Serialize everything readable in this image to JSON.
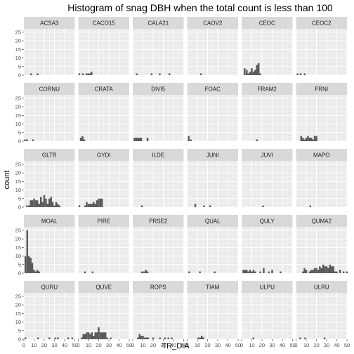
{
  "chart_data": {
    "type": "bar",
    "title": "Histogram of snag DBH when the total count is less than 100",
    "xlabel": "TR_DIA",
    "ylabel": "count",
    "xlim": [
      0,
      50
    ],
    "ylim": [
      0,
      27
    ],
    "x_ticks": [
      0,
      10,
      20,
      30,
      40,
      50
    ],
    "y_ticks": [
      0,
      5,
      10,
      15,
      20,
      25
    ],
    "bin_width": 1.67,
    "grid": true,
    "facets": [
      {
        "name": "ACSA3",
        "bars": [
          [
            7,
            1
          ],
          [
            13.5,
            1
          ]
        ]
      },
      {
        "name": "CACO15",
        "bars": [
          [
            1,
            1
          ],
          [
            4.5,
            1
          ],
          [
            8,
            1
          ],
          [
            9.7,
            1
          ],
          [
            11.3,
            1
          ],
          [
            13,
            2
          ]
        ]
      },
      {
        "name": "CALA21",
        "bars": [
          [
            4,
            1
          ],
          [
            18.5,
            1
          ],
          [
            26.5,
            1
          ],
          [
            36,
            1
          ]
        ]
      },
      {
        "name": "CAOV2",
        "bars": [
          [
            13.5,
            1
          ]
        ]
      },
      {
        "name": "CEOC",
        "bars": [
          [
            3,
            4
          ],
          [
            5,
            3
          ],
          [
            6.7,
            1
          ],
          [
            8.3,
            2
          ],
          [
            10,
            4
          ],
          [
            11.7,
            2
          ],
          [
            13.3,
            3
          ],
          [
            15,
            6
          ],
          [
            16.7,
            7
          ],
          [
            18.3,
            1
          ]
        ]
      },
      {
        "name": "CEOC2",
        "bars": [
          [
            1.5,
            1
          ],
          [
            4.5,
            1
          ],
          [
            8.5,
            1
          ]
        ]
      },
      {
        "name": "CORNU",
        "bars": [
          [
            1,
            1
          ],
          [
            3,
            1
          ],
          [
            9,
            1
          ]
        ]
      },
      {
        "name": "CRATA",
        "bars": [
          [
            2.5,
            2
          ],
          [
            4.2,
            3
          ],
          [
            5.8,
            1
          ]
        ]
      },
      {
        "name": "DIVI5",
        "bars": [
          [
            1.7,
            2
          ],
          [
            3.3,
            2
          ],
          [
            5,
            2
          ],
          [
            6.7,
            2
          ],
          [
            8.3,
            2
          ],
          [
            14.5,
            2
          ]
        ]
      },
      {
        "name": "FOAC",
        "bars": [
          [
            1.5,
            3
          ],
          [
            3.5,
            1
          ]
        ]
      },
      {
        "name": "FRAM2",
        "bars": [
          [
            15,
            1
          ]
        ]
      },
      {
        "name": "FRNI",
        "bars": [
          [
            5,
            3
          ],
          [
            6.7,
            2
          ],
          [
            8.3,
            1
          ],
          [
            10,
            2
          ],
          [
            11.7,
            3
          ],
          [
            13.3,
            2
          ],
          [
            15,
            2
          ],
          [
            16.7,
            1
          ],
          [
            18.3,
            3
          ],
          [
            20,
            3
          ]
        ]
      },
      {
        "name": "GLTR",
        "bars": [
          [
            3,
            1
          ],
          [
            5,
            1
          ],
          [
            6.7,
            4
          ],
          [
            8.3,
            4
          ],
          [
            10,
            5
          ],
          [
            11.7,
            4
          ],
          [
            13.3,
            4
          ],
          [
            15,
            2
          ],
          [
            16.7,
            6
          ],
          [
            18.3,
            3
          ],
          [
            20,
            7
          ],
          [
            21.7,
            5
          ],
          [
            23.3,
            2
          ],
          [
            25,
            5
          ],
          [
            26.7,
            6
          ],
          [
            28.3,
            3
          ],
          [
            30,
            1
          ],
          [
            31.7,
            3
          ],
          [
            33.3,
            2
          ],
          [
            35,
            1
          ]
        ]
      },
      {
        "name": "GYDI",
        "bars": [
          [
            1,
            1
          ],
          [
            6.7,
            1
          ],
          [
            8.3,
            3
          ],
          [
            10,
            2
          ],
          [
            11.7,
            2
          ],
          [
            13.3,
            2
          ],
          [
            15,
            3
          ],
          [
            16.7,
            2
          ],
          [
            18.3,
            4
          ],
          [
            20,
            5
          ],
          [
            21.7,
            5
          ],
          [
            23.3,
            5
          ]
        ]
      },
      {
        "name": "ILDE",
        "bars": [
          [
            9,
            1
          ]
        ]
      },
      {
        "name": "JUNI",
        "bars": [
          [
            8,
            2
          ],
          [
            16.5,
            1
          ],
          [
            22.5,
            1
          ]
        ]
      },
      {
        "name": "JUVI",
        "bars": [
          [
            21,
            1
          ]
        ]
      },
      {
        "name": "MAPO",
        "bars": [
          [
            14,
            1
          ]
        ]
      },
      {
        "name": "MOAL",
        "bars": [
          [
            1.5,
            10
          ],
          [
            3.3,
            25
          ],
          [
            5,
            10
          ],
          [
            6.7,
            9
          ],
          [
            8.3,
            6
          ],
          [
            10,
            2
          ],
          [
            11.7,
            1
          ],
          [
            13.3,
            2
          ],
          [
            15,
            1
          ]
        ]
      },
      {
        "name": "PIRE",
        "bars": [
          [
            6.5,
            1
          ],
          [
            14,
            1
          ]
        ]
      },
      {
        "name": "PRSE2",
        "bars": [
          [
            9,
            1
          ],
          [
            11,
            1
          ],
          [
            13,
            2
          ],
          [
            14.5,
            1
          ]
        ]
      },
      {
        "name": "QUAL",
        "bars": [
          [
            2,
            1
          ],
          [
            12.5,
            1
          ],
          [
            27,
            1
          ]
        ]
      },
      {
        "name": "QULY",
        "bars": [
          [
            1.7,
            2
          ],
          [
            3.3,
            2
          ],
          [
            5,
            2
          ],
          [
            6.7,
            1
          ],
          [
            8.3,
            2
          ],
          [
            10,
            1
          ],
          [
            11.7,
            2
          ],
          [
            13.3,
            1
          ],
          [
            18.3,
            1
          ],
          [
            21.7,
            3
          ],
          [
            26.7,
            1
          ],
          [
            30,
            2
          ],
          [
            38.3,
            1
          ]
        ]
      },
      {
        "name": "QUMA2",
        "bars": [
          [
            6.7,
            1
          ],
          [
            8.3,
            3
          ],
          [
            10,
            2
          ],
          [
            13.3,
            1
          ],
          [
            15,
            2
          ],
          [
            16.7,
            2
          ],
          [
            18.3,
            3
          ],
          [
            20,
            3
          ],
          [
            21.7,
            2
          ],
          [
            23.3,
            4
          ],
          [
            25,
            3
          ],
          [
            26.7,
            5
          ],
          [
            28.3,
            4
          ],
          [
            30,
            4
          ],
          [
            31.7,
            3
          ],
          [
            33.3,
            5
          ],
          [
            35,
            4
          ],
          [
            36.7,
            4
          ],
          [
            38.3,
            1
          ],
          [
            40,
            1
          ],
          [
            43.3,
            2
          ],
          [
            46.7,
            1
          ],
          [
            50,
            1
          ]
        ]
      },
      {
        "name": "QURU",
        "bars": [
          [
            1.5,
            1
          ],
          [
            14,
            1
          ],
          [
            25,
            1
          ],
          [
            31,
            1
          ],
          [
            33.5,
            1
          ],
          [
            43.5,
            1
          ],
          [
            47.5,
            1
          ]
        ]
      },
      {
        "name": "QUVE",
        "bars": [
          [
            3.3,
            1
          ],
          [
            5,
            3
          ],
          [
            6.7,
            3
          ],
          [
            8.3,
            4
          ],
          [
            10,
            4
          ],
          [
            11.7,
            3
          ],
          [
            13.3,
            4
          ],
          [
            15,
            2
          ],
          [
            16.7,
            4
          ],
          [
            18.3,
            4
          ],
          [
            20,
            7
          ],
          [
            21.7,
            4
          ],
          [
            23.3,
            4
          ],
          [
            25,
            4
          ],
          [
            26.7,
            4
          ],
          [
            28.3,
            1
          ],
          [
            31.7,
            1
          ]
        ]
      },
      {
        "name": "ROPS",
        "bars": [
          [
            5,
            1
          ],
          [
            6.7,
            3
          ],
          [
            8.3,
            2
          ],
          [
            10,
            2
          ],
          [
            11.7,
            1
          ],
          [
            13.3,
            1
          ],
          [
            15,
            1
          ],
          [
            20,
            1
          ],
          [
            26.7,
            1
          ],
          [
            31.7,
            1
          ],
          [
            35,
            1
          ],
          [
            38.3,
            1
          ]
        ]
      },
      {
        "name": "TIAM",
        "bars": [
          [
            11,
            1
          ],
          [
            12.7,
            1
          ],
          [
            14.3,
            2
          ],
          [
            16,
            1
          ]
        ]
      },
      {
        "name": "ULPU",
        "bars": [
          [
            11.5,
            1
          ]
        ]
      },
      {
        "name": "ULRU",
        "bars": [
          [
            4,
            1
          ],
          [
            9,
            1
          ],
          [
            28,
            1
          ]
        ]
      }
    ]
  }
}
